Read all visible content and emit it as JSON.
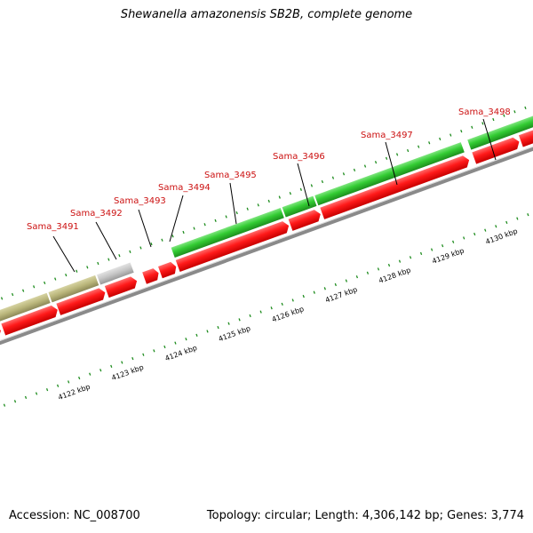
{
  "title": "Shewanella amazonensis SB2B, complete genome",
  "accession_text": "Accession: NC_008700",
  "stats_text": "Topology: circular; Length: 4,306,142 bp; Genes: 3,774",
  "kbp_labels": [
    "4122 kbp",
    "4123 kbp",
    "4124 kbp",
    "4125 kbp",
    "4126 kbp",
    "4127 kbp",
    "4128 kbp",
    "4129 kbp",
    "4130 kbp"
  ],
  "gene_labels": [
    "Sama_3491",
    "Sama_3492",
    "Sama_3493",
    "Sama_3494",
    "Sama_3495",
    "Sama_3496",
    "Sama_3497",
    "Sama_3498"
  ],
  "colors": {
    "cds_arrow": "#ff1a1a",
    "cog_green": "#33cc33",
    "cog_khaki": "#b9b57a",
    "cog_grey": "#bdbdbd",
    "backbone": "#8a8a8a",
    "tick": "#1e8c1e",
    "label": "#cc1111"
  }
}
